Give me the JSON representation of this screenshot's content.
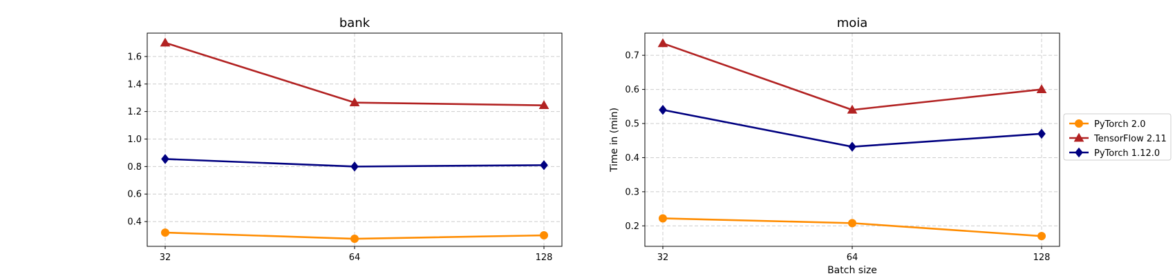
{
  "chart_data": [
    {
      "type": "line",
      "title": "bank",
      "xlabel": "",
      "ylabel": "",
      "categories": [
        "32",
        "64",
        "128"
      ],
      "ylim": [
        0.22,
        1.77
      ],
      "yticks": [
        "0.4",
        "0.6",
        "0.8",
        "1.0",
        "1.2",
        "1.4",
        "1.6"
      ],
      "grid": true,
      "series": [
        {
          "name": "PyTorch 2.0",
          "color": "#ff8c00",
          "marker": "circle",
          "values": [
            0.32,
            0.275,
            0.3
          ]
        },
        {
          "name": "TensorFlow 2.11",
          "color": "#b22222",
          "marker": "triangle",
          "values": [
            1.7,
            1.265,
            1.245
          ]
        },
        {
          "name": "PyTorch 1.12.0",
          "color": "#000080",
          "marker": "diamond",
          "values": [
            0.855,
            0.8,
            0.81
          ]
        }
      ]
    },
    {
      "type": "line",
      "title": "moia",
      "xlabel": "Batch size",
      "ylabel": "Time in (min)",
      "categories": [
        "32",
        "64",
        "128"
      ],
      "ylim": [
        0.14,
        0.765
      ],
      "yticks": [
        "0.2",
        "0.3",
        "0.4",
        "0.5",
        "0.6",
        "0.7"
      ],
      "grid": true,
      "legend": "outside-right",
      "series": [
        {
          "name": "PyTorch 2.0",
          "color": "#ff8c00",
          "marker": "circle",
          "values": [
            0.222,
            0.208,
            0.17
          ]
        },
        {
          "name": "TensorFlow 2.11",
          "color": "#b22222",
          "marker": "triangle",
          "values": [
            0.735,
            0.54,
            0.6
          ]
        },
        {
          "name": "PyTorch 1.12.0",
          "color": "#000080",
          "marker": "diamond",
          "values": [
            0.54,
            0.432,
            0.47
          ]
        }
      ]
    }
  ]
}
